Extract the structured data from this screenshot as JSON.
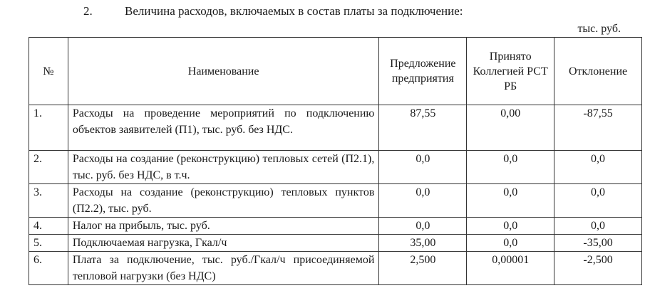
{
  "section": {
    "number": "2.",
    "title": "Величина расходов, включаемых в состав платы за подключение:"
  },
  "unit_label": "тыс. руб.",
  "table": {
    "headers": [
      "№",
      "Наименование",
      "Предложение предприятия",
      "Принято Коллегией РСТ РБ",
      "Отклонение"
    ],
    "rows": [
      {
        "no": "1.",
        "name": "Расходы на проведение мероприятий по подключению объектов заявителей (П1), тыс. руб. без НДС.",
        "proposal": "87,55",
        "accepted": "0,00",
        "deviation": "-87,55"
      },
      {
        "no": "2.",
        "name": "Расходы на создание (реконструкцию) тепловых сетей (П2.1), тыс. руб. без НДС, в т.ч.",
        "proposal": "0,0",
        "accepted": "0,0",
        "deviation": "0,0"
      },
      {
        "no": "3.",
        "name": "Расходы на создание (реконструкцию) тепловых пунктов (П2.2), тыс. руб.",
        "proposal": "0,0",
        "accepted": "0,0",
        "deviation": "0,0"
      },
      {
        "no": "4.",
        "name": "Налог на прибыль, тыс. руб.",
        "proposal": "0,0",
        "accepted": "0,0",
        "deviation": "0,0"
      },
      {
        "no": "5.",
        "name": "Подключаемая нагрузка, Гкал/ч",
        "proposal": "35,00",
        "accepted": "0,0",
        "deviation": "-35,00"
      },
      {
        "no": "6.",
        "name": "Плата за подключение, тыс. руб./Гкал/ч присоединяемой тепловой нагрузки (без НДС)",
        "proposal": "2,500",
        "accepted": "0,00001",
        "deviation": "-2,500"
      }
    ]
  }
}
